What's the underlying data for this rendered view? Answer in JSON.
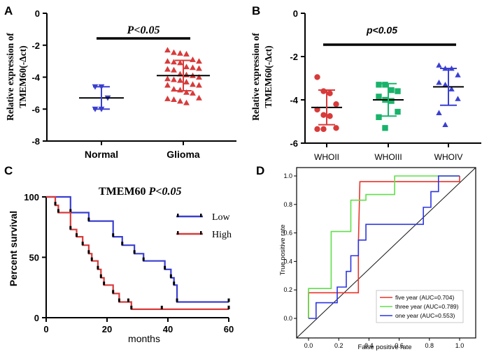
{
  "colors": {
    "axis": "#000000",
    "blue": "#3a3fd0",
    "red": "#d83a3a",
    "green": "#19b36b",
    "roc_red": "#e8332a",
    "roc_green": "#5fe04a",
    "roc_blue": "#2b35e0",
    "diag": "#111111"
  },
  "chart_data": [
    {
      "panel": "A",
      "type": "scatter",
      "ylabel": "Relative expression of TMEM60(-Δct)",
      "ylabel_line1": "Relative expression of",
      "ylabel_line2": "TMEM60(-Δct)",
      "ylim": [
        -8,
        0
      ],
      "yticks": [
        0,
        -2,
        -4,
        -6,
        -8
      ],
      "annotation": "P<0.05",
      "categories": [
        "Normal",
        "Glioma"
      ],
      "series": [
        {
          "name": "Normal",
          "marker": "triangle-down",
          "color": "blue",
          "mean": -5.3,
          "sd": 0.7,
          "values": [
            -4.6,
            -4.6,
            -5.3,
            -6.0,
            -6.0
          ]
        },
        {
          "name": "Glioma",
          "marker": "triangle-up",
          "color": "red",
          "mean": -3.9,
          "sd": 0.95,
          "values": [
            -2.3,
            -2.45,
            -2.5,
            -2.55,
            -2.9,
            -3.0,
            -3.0,
            -3.05,
            -3.1,
            -3.35,
            -3.4,
            -3.45,
            -3.5,
            -3.55,
            -3.8,
            -3.85,
            -3.9,
            -4.0,
            -4.1,
            -4.15,
            -4.2,
            -4.3,
            -4.45,
            -4.5,
            -4.5,
            -4.75,
            -4.8,
            -4.95,
            -5.0,
            -5.3,
            -5.35,
            -5.4,
            -5.5,
            -5.6
          ]
        }
      ]
    },
    {
      "panel": "B",
      "type": "scatter",
      "ylabel": "Relative expression of TMEM60(-Δct)",
      "ylabel_line1": "Relative expression of",
      "ylabel_line2": "TMEM60(-Δct)",
      "ylim": [
        -6,
        0
      ],
      "yticks": [
        0,
        -2,
        -4,
        -6
      ],
      "annotation": "p<0.05",
      "categories": [
        "WHOII",
        "WHOIII",
        "WHOIV"
      ],
      "series": [
        {
          "name": "WHOII",
          "marker": "circle",
          "color": "red",
          "mean": -4.35,
          "sd": 0.8,
          "values": [
            -2.95,
            -3.6,
            -3.7,
            -4.2,
            -4.45,
            -4.7,
            -4.75,
            -5.3,
            -5.35,
            -5.35
          ]
        },
        {
          "name": "WHOIII",
          "marker": "square",
          "color": "green",
          "mean": -4.0,
          "sd": 0.75,
          "values": [
            -3.3,
            -3.3,
            -3.55,
            -3.6,
            -3.85,
            -4.0,
            -4.05,
            -4.55,
            -4.8,
            -5.3
          ]
        },
        {
          "name": "WHOIV",
          "marker": "triangle-up",
          "color": "blue",
          "mean": -3.4,
          "sd": 0.85,
          "values": [
            -2.4,
            -2.55,
            -2.55,
            -2.85,
            -3.2,
            -3.3,
            -3.5,
            -3.95,
            -4.6,
            -5.15
          ]
        }
      ]
    },
    {
      "panel": "C",
      "type": "line",
      "subtype": "kaplan-meier",
      "title": "TMEM60",
      "title_p": "P<0.05",
      "xlabel": "months",
      "ylabel": "Percent survival",
      "xlim": [
        0,
        60
      ],
      "ylim": [
        0,
        100
      ],
      "xticks": [
        0,
        20,
        40,
        60
      ],
      "yticks": [
        0,
        50,
        100
      ],
      "series": [
        {
          "name": "Low",
          "color": "blue",
          "steps": [
            [
              0,
              100
            ],
            [
              8,
              87
            ],
            [
              14,
              80
            ],
            [
              22,
              67
            ],
            [
              25,
              60
            ],
            [
              29,
              53
            ],
            [
              32,
              47
            ],
            [
              39,
              40
            ],
            [
              41,
              33
            ],
            [
              42,
              27
            ],
            [
              43,
              13
            ],
            [
              60,
              13
            ]
          ]
        },
        {
          "name": "High",
          "color": "red",
          "steps": [
            [
              0,
              100
            ],
            [
              3,
              93
            ],
            [
              4,
              87
            ],
            [
              8,
              73
            ],
            [
              10,
              67
            ],
            [
              12,
              60
            ],
            [
              14,
              53
            ],
            [
              15,
              47
            ],
            [
              17,
              40
            ],
            [
              18,
              33
            ],
            [
              19,
              27
            ],
            [
              22,
              20
            ],
            [
              24,
              13
            ],
            [
              27,
              13
            ],
            [
              28,
              7
            ],
            [
              60,
              7
            ]
          ]
        }
      ],
      "censor": [
        {
          "series": "Low",
          "x": 60,
          "y": 13
        },
        {
          "series": "High",
          "x": 38,
          "y": 7
        },
        {
          "series": "High",
          "x": 60,
          "y": 7
        }
      ]
    },
    {
      "panel": "D",
      "type": "line",
      "subtype": "roc",
      "xlabel": "False positive rate",
      "ylabel": "True positive rate",
      "xlim": [
        0,
        1
      ],
      "ylim": [
        0,
        1
      ],
      "xticks": [
        "0.0",
        "0.2",
        "0.4",
        "0.6",
        "0.8",
        "1.0"
      ],
      "yticks": [
        "0.0",
        "0.2",
        "0.4",
        "0.6",
        "0.8",
        "1.0"
      ],
      "series": [
        {
          "name": "five year (AUC=0.704)",
          "color": "roc_red",
          "points": [
            [
              0,
              0
            ],
            [
              0,
              0.18
            ],
            [
              0.33,
              0.18
            ],
            [
              0.33,
              0.52
            ],
            [
              0.34,
              0.96
            ],
            [
              1,
              0.96
            ],
            [
              1,
              1
            ]
          ]
        },
        {
          "name": "three year (AUC=0.789)",
          "color": "roc_green",
          "points": [
            [
              0,
              0
            ],
            [
              0,
              0.21
            ],
            [
              0.15,
              0.21
            ],
            [
              0.15,
              0.61
            ],
            [
              0.28,
              0.61
            ],
            [
              0.28,
              0.83
            ],
            [
              0.38,
              0.83
            ],
            [
              0.38,
              0.87
            ],
            [
              0.57,
              0.87
            ],
            [
              0.57,
              1.0
            ],
            [
              1,
              1
            ]
          ]
        },
        {
          "name": "one year (AUC=0.553)",
          "color": "roc_blue",
          "points": [
            [
              0,
              0
            ],
            [
              0.05,
              0
            ],
            [
              0.05,
              0.11
            ],
            [
              0.19,
              0.11
            ],
            [
              0.19,
              0.22
            ],
            [
              0.25,
              0.22
            ],
            [
              0.25,
              0.33
            ],
            [
              0.28,
              0.33
            ],
            [
              0.28,
              0.44
            ],
            [
              0.33,
              0.44
            ],
            [
              0.33,
              0.55
            ],
            [
              0.38,
              0.55
            ],
            [
              0.38,
              0.66
            ],
            [
              0.76,
              0.66
            ],
            [
              0.76,
              0.78
            ],
            [
              0.81,
              0.78
            ],
            [
              0.81,
              0.89
            ],
            [
              0.86,
              0.89
            ],
            [
              0.86,
              1.0
            ],
            [
              1,
              1
            ]
          ]
        }
      ]
    }
  ],
  "panel_labels": [
    "A",
    "B",
    "C",
    "D"
  ]
}
